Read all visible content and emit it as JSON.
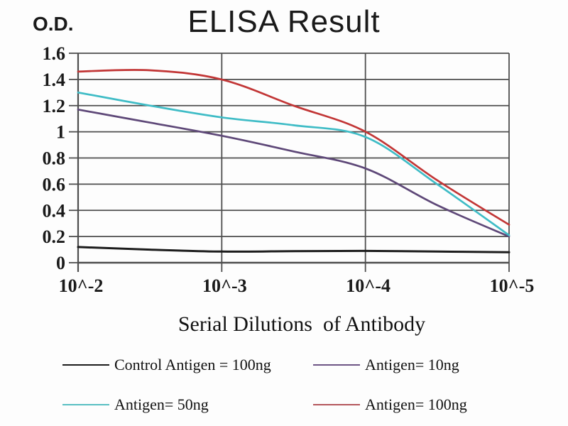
{
  "chart": {
    "title": "ELISA Result",
    "y_axis_label": "O.D.",
    "x_axis_label": "Serial Dilutions  of Antibody"
  },
  "chart_data": {
    "type": "line",
    "title": "ELISA Result",
    "xlabel": "Serial Dilutions of Antibody",
    "ylabel": "O.D.",
    "x_scale": "log-dilution",
    "categories": [
      "10^-2",
      "10^-3",
      "10^-4",
      "10^-5"
    ],
    "y_tick_labels": [
      "0",
      "0.2",
      "0.4",
      "0.6",
      "0.8",
      "1",
      "1.2",
      "1.4",
      "1.6"
    ],
    "y_tick_values": [
      0,
      0.2,
      0.4,
      0.6,
      0.8,
      1.0,
      1.2,
      1.4,
      1.6
    ],
    "ylim": [
      0,
      1.6
    ],
    "grid": true,
    "legend_position": "bottom",
    "grid_color": "#4e4e4e",
    "series": [
      {
        "name": "Antigen= 10ng",
        "color": "#5e4878",
        "values": [
          1.17,
          0.97,
          0.72,
          0.2
        ],
        "curve_samples": {
          "fractions": [
            0,
            0.167,
            0.333,
            0.5,
            0.667,
            0.833,
            1
          ],
          "values": [
            1.17,
            1.07,
            0.97,
            0.85,
            0.72,
            0.44,
            0.2
          ]
        }
      },
      {
        "name": "Antigen= 50ng",
        "color": "#3fbcc6",
        "values": [
          1.3,
          1.11,
          0.96,
          0.21
        ],
        "curve_samples": {
          "fractions": [
            0,
            0.167,
            0.333,
            0.5,
            0.667,
            0.833,
            1
          ],
          "values": [
            1.3,
            1.2,
            1.11,
            1.05,
            0.96,
            0.6,
            0.21
          ]
        }
      },
      {
        "name": "Antigen= 100ng",
        "color": "#c23636",
        "values": [
          1.46,
          1.4,
          1.0,
          0.29
        ],
        "curve_samples": {
          "fractions": [
            0,
            0.167,
            0.333,
            0.5,
            0.667,
            0.833,
            1
          ],
          "values": [
            1.46,
            1.47,
            1.4,
            1.2,
            1.0,
            0.63,
            0.29
          ]
        }
      },
      {
        "name": "Control Antigen = 100ng",
        "color": "#1c1c1c",
        "values": [
          0.12,
          0.09,
          0.09,
          0.08
        ],
        "curve_samples": {
          "fractions": [
            0,
            0.167,
            0.333,
            0.5,
            0.667,
            0.833,
            1
          ],
          "values": [
            0.12,
            0.1,
            0.085,
            0.088,
            0.09,
            0.085,
            0.08
          ]
        }
      }
    ]
  },
  "legend": {
    "items": [
      {
        "label": "Control Antigen = 100ng",
        "color": "#1c1c1c"
      },
      {
        "label": "Antigen= 10ng",
        "color": "#6d5585"
      },
      {
        "label": "Antigen= 50ng",
        "color": "#58bfc2"
      },
      {
        "label": "Antigen= 100ng",
        "color": "#b4565c"
      }
    ]
  }
}
